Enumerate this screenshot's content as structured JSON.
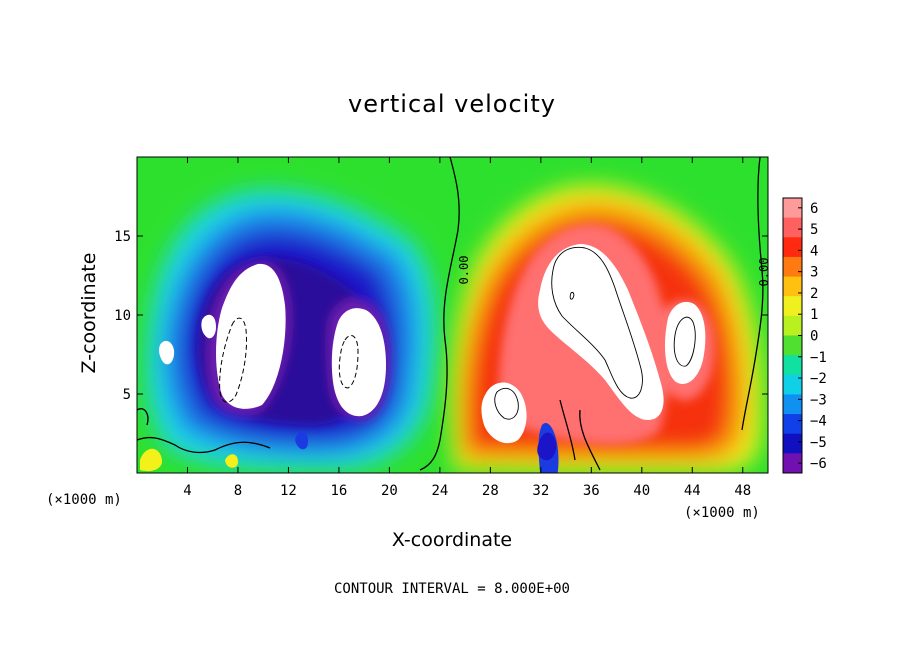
{
  "chart_data": {
    "type": "heatmap",
    "title": "vertical velocity",
    "xlabel": "X-coordinate",
    "ylabel": "Z-coordinate",
    "x_unit": "(×1000 m)",
    "y_unit": "(×1000 m)",
    "xlim": [
      0,
      50
    ],
    "ylim": [
      0,
      20
    ],
    "x_ticks": [
      4,
      8,
      12,
      16,
      20,
      24,
      28,
      32,
      36,
      40,
      44,
      48
    ],
    "y_ticks": [
      5,
      10,
      15
    ],
    "colorbar": {
      "ticks": [
        6,
        5,
        4,
        3,
        2,
        1,
        0,
        -1,
        -2,
        -3,
        -4,
        -5,
        -6
      ],
      "tick_labels": [
        "6",
        "5",
        "4",
        "3",
        "2",
        "1",
        "0",
        "−1",
        "−2",
        "−3",
        "−4",
        "−5",
        "−6"
      ],
      "range": [
        -6,
        6
      ]
    },
    "contour_labels": [
      "0.00",
      "0.00"
    ],
    "contour_interval_text": "CONTOUR INTERVAL = 8.000E+00",
    "field_features": [
      {
        "sign": "negative",
        "x_center": 9,
        "z_center": 9,
        "peak": -8
      },
      {
        "sign": "negative",
        "x_center": 16.5,
        "z_center": 7.5,
        "peak": -8
      },
      {
        "sign": "positive",
        "x_center": 36,
        "z_center": 9,
        "peak": 16
      },
      {
        "sign": "positive",
        "x_center": 43,
        "z_center": 8.5,
        "peak": 8
      },
      {
        "sign": "positive",
        "x_center": 30,
        "z_center": 4,
        "peak": 8
      },
      {
        "sign": "negative",
        "x_center": 32.5,
        "z_center": 1.5,
        "peak": -5
      }
    ],
    "grid": false
  }
}
